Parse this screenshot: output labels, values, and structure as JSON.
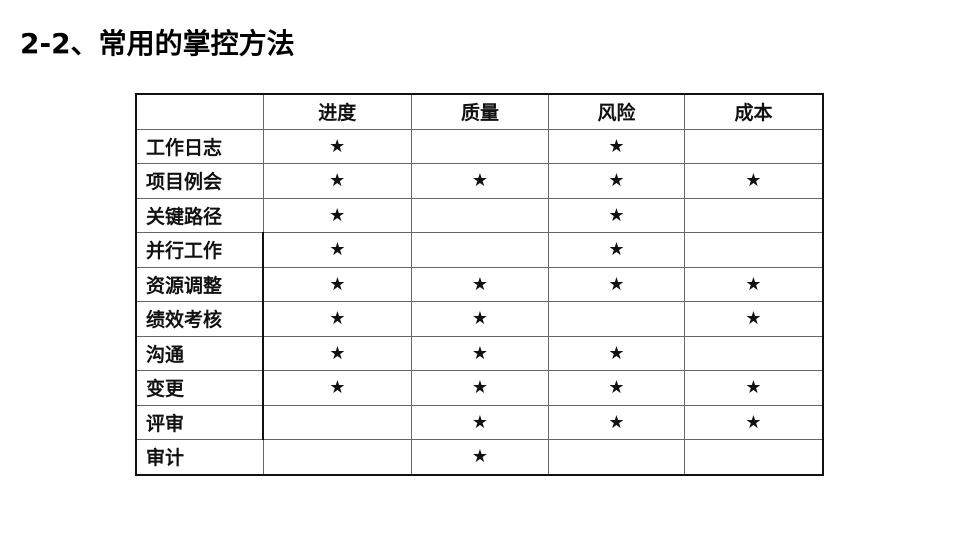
{
  "title": "2-2、常用的掌控方法",
  "table": {
    "columns": [
      "",
      "进度",
      "质量",
      "风险",
      "成本"
    ],
    "star_glyph": "★",
    "rows": [
      {
        "label": "工作日志",
        "cells": [
          "★",
          "",
          "★",
          ""
        ]
      },
      {
        "label": "项目例会",
        "cells": [
          "★",
          "★",
          "★",
          "★"
        ]
      },
      {
        "label": "关键路径",
        "cells": [
          "★",
          "",
          "★",
          ""
        ]
      },
      {
        "label": "并行工作",
        "cells": [
          "★",
          "",
          "★",
          ""
        ]
      },
      {
        "label": "资源调整",
        "cells": [
          "★",
          "★",
          "★",
          "★"
        ]
      },
      {
        "label": "绩效考核",
        "cells": [
          "★",
          "★",
          "",
          "★"
        ]
      },
      {
        "label": "沟通",
        "cells": [
          "★",
          "★",
          "★",
          ""
        ]
      },
      {
        "label": "变更",
        "cells": [
          "★",
          "★",
          "★",
          "★"
        ]
      },
      {
        "label": "评审",
        "cells": [
          "",
          "★",
          "★",
          "★"
        ]
      },
      {
        "label": "审计",
        "cells": [
          "",
          "★",
          "",
          ""
        ]
      }
    ]
  }
}
